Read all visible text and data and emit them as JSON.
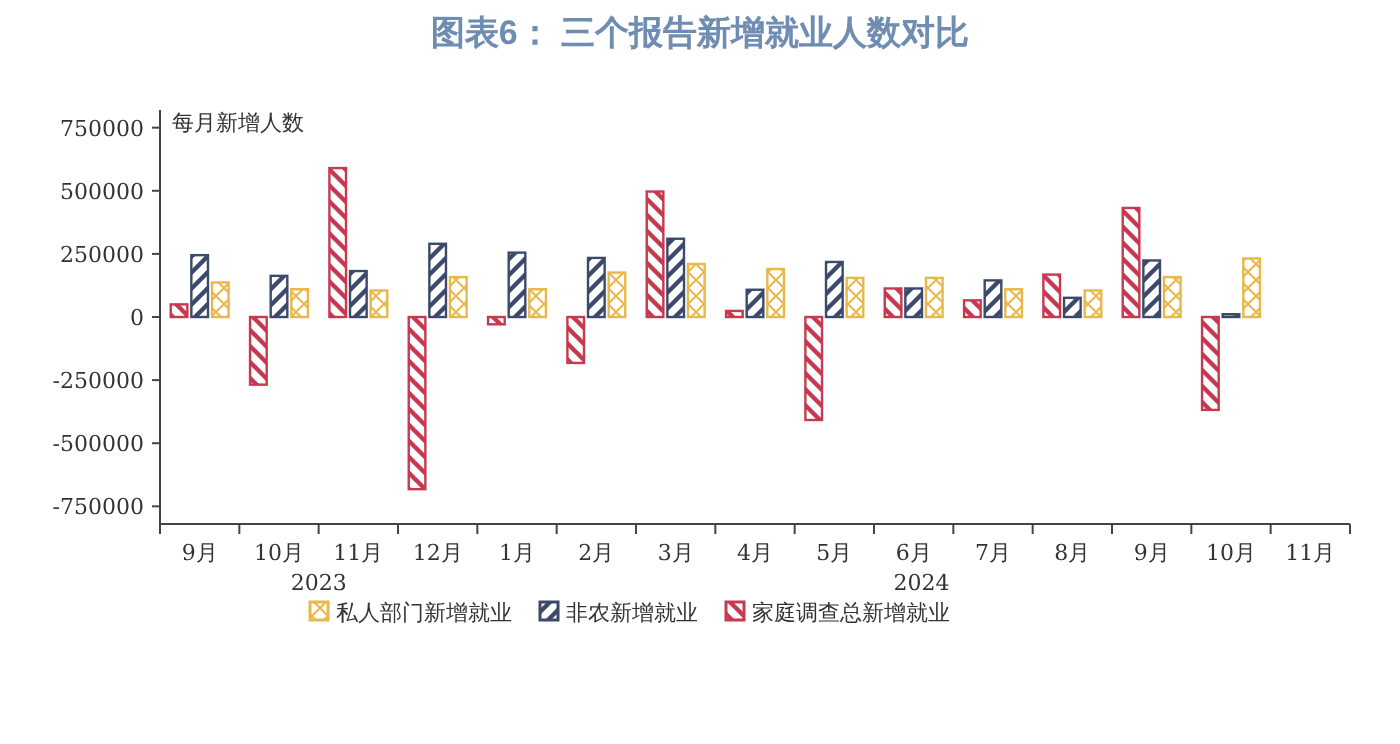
{
  "chart_data": {
    "type": "bar",
    "title": "图表6：    三个报告新增就业人数对比",
    "ylabel": "每月新增人数",
    "categories": [
      "9月",
      "10月",
      "11月",
      "12月",
      "1月",
      "2月",
      "3月",
      "4月",
      "5月",
      "6月",
      "7月",
      "8月",
      "9月",
      "10月",
      "11月"
    ],
    "series": [
      {
        "name": "家庭调查总新增就业",
        "color": "#c8384f",
        "values": [
          50000,
          -268000,
          590000,
          -682000,
          -29000,
          -182000,
          497000,
          24000,
          -408000,
          113000,
          66000,
          168000,
          432000,
          -368000,
          null
        ]
      },
      {
        "name": "非农新增就业",
        "color": "#3b4a6b",
        "values": [
          245000,
          163000,
          182000,
          290000,
          255000,
          234000,
          310000,
          108000,
          218000,
          113000,
          145000,
          76000,
          224000,
          11000,
          null
        ]
      },
      {
        "name": "私人部门新增就业",
        "color": "#e8b84b",
        "values": [
          137000,
          110000,
          105000,
          158000,
          110000,
          176000,
          210000,
          190000,
          155000,
          155000,
          110000,
          105000,
          158000,
          232000,
          null
        ]
      }
    ],
    "ylim": [
      -820000,
      820000
    ],
    "yticks": [
      -750000,
      -500000,
      -250000,
      0,
      250000,
      500000,
      750000
    ],
    "legend": "bottom",
    "grid": false,
    "annotations": [
      "2023",
      "2024"
    ]
  }
}
